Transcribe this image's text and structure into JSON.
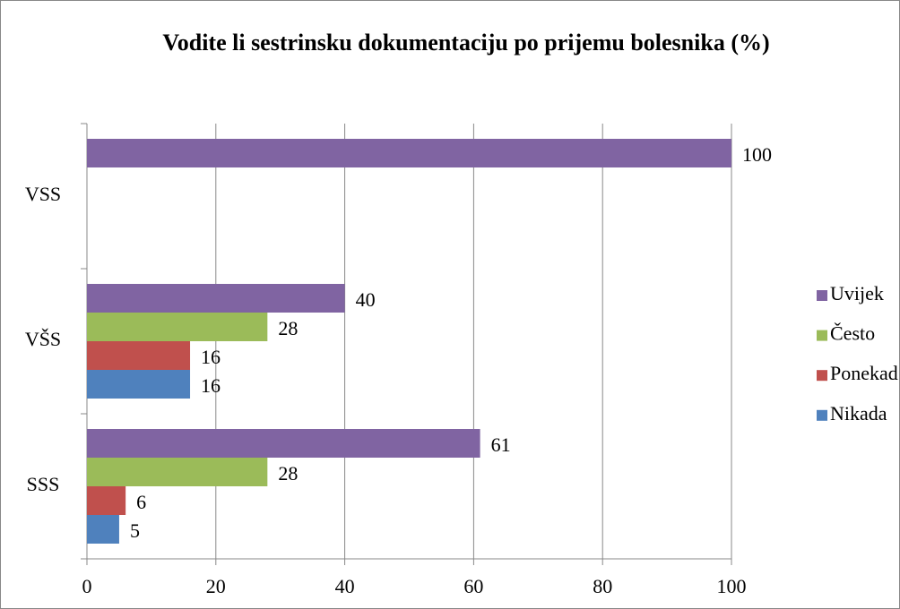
{
  "chart_data": {
    "type": "hbar",
    "title": "Vodite li sestrinsku dokumentaciju po prijemu bolesnika (%)",
    "categories": [
      "SSS",
      "VŠS",
      "VSS"
    ],
    "series": [
      {
        "name": "Nikada",
        "color": "#4f81bd",
        "values": [
          5,
          16,
          null
        ]
      },
      {
        "name": "Ponekad",
        "color": "#c0504d",
        "values": [
          6,
          16,
          null
        ]
      },
      {
        "name": "Često",
        "color": "#9bbb59",
        "values": [
          28,
          28,
          null
        ]
      },
      {
        "name": "Uvijek",
        "color": "#8064a2",
        "values": [
          61,
          40,
          100
        ]
      }
    ],
    "xlim": [
      0,
      100
    ],
    "xticks": [
      0,
      20,
      40,
      60,
      80,
      100
    ],
    "grid": true,
    "legend": "right"
  }
}
